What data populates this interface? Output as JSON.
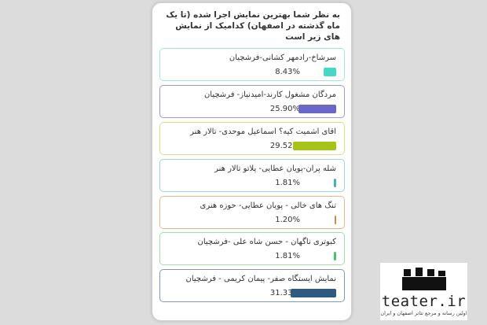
{
  "poll": {
    "question": "به نظر شما بهترین نمایش اجرا شده (تا یک ماه گذشته در اصفهان) کدامیک از نمایش های زیر است",
    "options": [
      {
        "label": "سرشاخ-رادمهر کشانی-فرشچیان",
        "percent": "8.43%",
        "share": 8.43,
        "color": "#44d9c7",
        "border": "#9fe8dc"
      },
      {
        "label": "مردگان مشغول کارند-امیدنیاز- فرشچیان",
        "percent": "25.90%",
        "share": 25.9,
        "color": "#6b67c9",
        "border": "#9b98d6"
      },
      {
        "label": "اقای اشمیت کیه؟ اسماعیل موحدی- تالار هنر",
        "percent": "29.52%",
        "share": 29.52,
        "color": "#a6c415",
        "border": "#dce478"
      },
      {
        "label": "شله پران-پویان عطایی- پلاتو تالار هنر",
        "percent": "1.81%",
        "share": 1.81,
        "color": "#3fb2c4",
        "border": "#9fd2e4"
      },
      {
        "label": "تنگ های خالی - پویان عطایی- حوزه هنری",
        "percent": "1.20%",
        "share": 1.2,
        "color": "#c98b48",
        "border": "#e5b88a"
      },
      {
        "label": "کبوتری ناگهان - حسن شاه علی -فرشچیان",
        "percent": "1.81%",
        "share": 1.81,
        "color": "#44c56b",
        "border": "#9fe0ae"
      },
      {
        "label": "نمایش ایستگاه صفر- پیمان کریمی - فرشچیان",
        "percent": "31.33%",
        "share": 31.33,
        "color": "#2d5a80",
        "border": "#7f9ab6"
      }
    ]
  },
  "logo": {
    "name": "teater.ir",
    "tagline": "اولین رسانه و مرجع تئاتر اصفهان و ایران"
  }
}
